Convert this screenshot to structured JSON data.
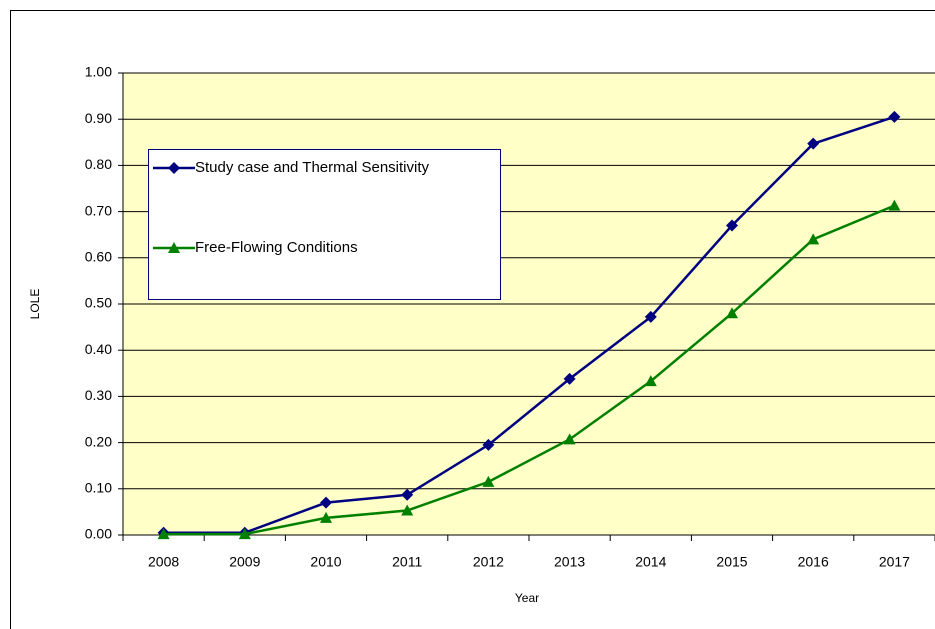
{
  "chart_data": {
    "type": "line",
    "xlabel": "Year",
    "ylabel": "LOLE",
    "categories": [
      "2008",
      "2009",
      "2010",
      "2011",
      "2012",
      "2013",
      "2014",
      "2015",
      "2016",
      "2017"
    ],
    "series": [
      {
        "name": "Study case and Thermal Sensitivity",
        "color": "#000080",
        "marker": "diamond",
        "values": [
          0.005,
          0.005,
          0.07,
          0.087,
          0.195,
          0.338,
          0.472,
          0.67,
          0.847,
          0.905
        ]
      },
      {
        "name": "Free-Flowing Conditions",
        "color": "#008000",
        "marker": "triangle",
        "values": [
          0.002,
          0.002,
          0.037,
          0.053,
          0.115,
          0.207,
          0.333,
          0.48,
          0.64,
          0.713
        ]
      }
    ],
    "ylim": [
      0,
      1
    ],
    "yticks": [
      {
        "value": 0,
        "label": "0.00"
      },
      {
        "value": 0.1,
        "label": "0.10"
      },
      {
        "value": 0.2,
        "label": "0.20"
      },
      {
        "value": 0.3,
        "label": "0.30"
      },
      {
        "value": 0.4,
        "label": "0.40"
      },
      {
        "value": 0.5,
        "label": "0.50"
      },
      {
        "value": 0.6,
        "label": "0.60"
      },
      {
        "value": 0.7,
        "label": "0.70"
      },
      {
        "value": 0.8,
        "label": "0.80"
      },
      {
        "value": 0.9,
        "label": "0.90"
      },
      {
        "value": 1,
        "label": "1.00"
      }
    ],
    "grid": true,
    "legend": "upper-left",
    "plot_background": "#ffffc8"
  }
}
